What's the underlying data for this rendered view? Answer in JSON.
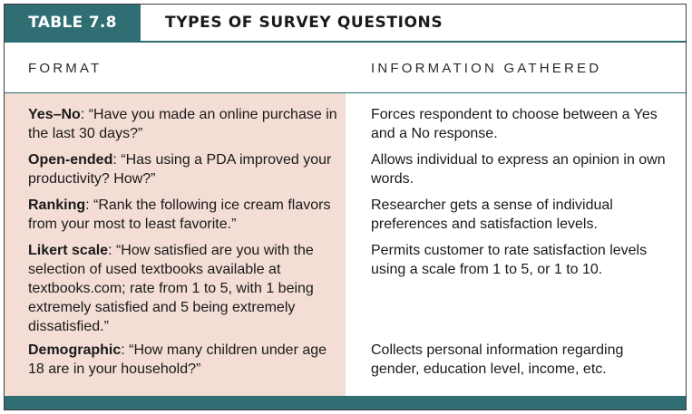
{
  "header": {
    "table_label": "TABLE 7.8",
    "title": "TYPES OF SURVEY QUESTIONS"
  },
  "columns": {
    "format": "FORMAT",
    "information": "INFORMATION GATHERED"
  },
  "rows": [
    {
      "term": "Yes–No",
      "question": ": “Have you made an online purchase in the last 30 days?”",
      "information": "Forces respondent to choose between a Yes and a No response."
    },
    {
      "term": "Open-ended",
      "question": ": “Has using a PDA improved your productivity? How?”",
      "information": "Allows individual to express an opinion in own words."
    },
    {
      "term": "Ranking",
      "question": ": “Rank the following ice cream flavors from your most to least favorite.”",
      "information": "Researcher gets a sense of individual preferences and satisfaction levels."
    },
    {
      "term": "Likert scale",
      "question": ": “How satisfied are you with the selection of used textbooks available at textbooks.com; rate from 1 to 5, with 1 being extremely satisfied and 5 being extremely dissatisfied.”",
      "information": "Permits customer to rate satisfaction levels using a scale from 1 to 5, or 1 to 10."
    },
    {
      "term": "Demographic",
      "question": ": “How many children under age 18 are in your household?”",
      "information": "Collects personal information regarding gender, education level, income, etc."
    }
  ]
}
